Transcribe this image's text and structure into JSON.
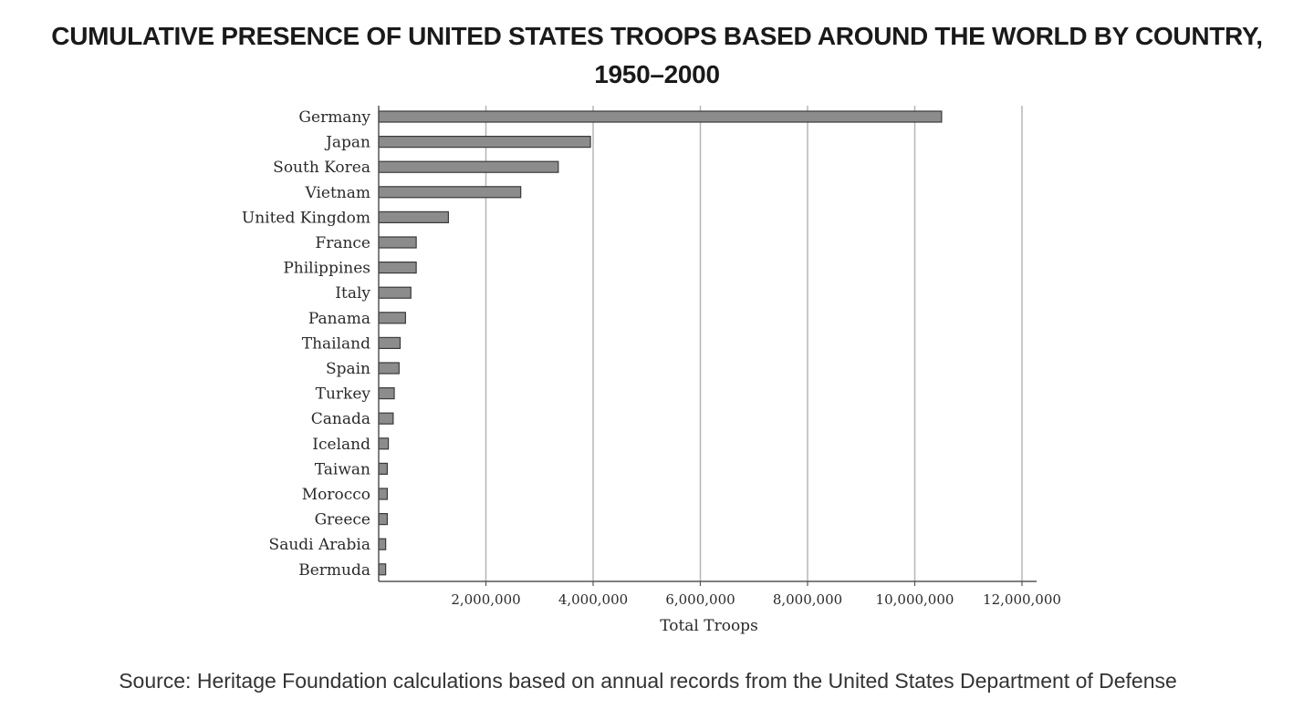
{
  "chart_data": {
    "type": "bar",
    "orientation": "horizontal",
    "title": "CUMULATIVE PRESENCE OF UNITED STATES TROOPS BASED AROUND THE WORLD BY COUNTRY,",
    "title_line2": "1950–2000",
    "xlabel": "Total Troops",
    "ylabel": "",
    "xlim": [
      0,
      12000000
    ],
    "grid": true,
    "xticks": [
      2000000,
      4000000,
      6000000,
      8000000,
      10000000,
      12000000
    ],
    "xtick_labels": [
      "2,000,000",
      "4,000,000",
      "6,000,000",
      "8,000,000",
      "10,000,000",
      "12,000,000"
    ],
    "categories": [
      "Germany",
      "Japan",
      "South Korea",
      "Vietnam",
      "United Kingdom",
      "France",
      "Philippines",
      "Italy",
      "Panama",
      "Thailand",
      "Spain",
      "Turkey",
      "Canada",
      "Iceland",
      "Taiwan",
      "Morocco",
      "Greece",
      "Saudi Arabia",
      "Bermuda"
    ],
    "values": [
      10500000,
      3950000,
      3350000,
      2650000,
      1300000,
      700000,
      700000,
      600000,
      500000,
      400000,
      380000,
      290000,
      270000,
      180000,
      160000,
      160000,
      160000,
      130000,
      130000
    ],
    "bar_color": "#8c8c8c"
  },
  "source": "Source: Heritage Foundation calculations based on annual records from the United States Department of Defense"
}
